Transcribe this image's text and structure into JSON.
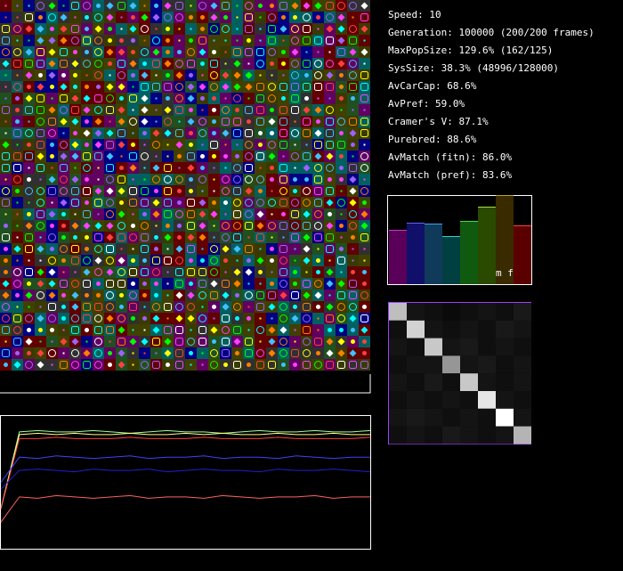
{
  "stats": [
    "Speed: 10",
    "Generation: 100000 (200/200 frames)",
    "MaxPopSize: 129.6% (162/125)",
    "SysSize: 38.3% (48996/128000)",
    "AvCarCap: 68.6%",
    "AvPref: 59.0%",
    "Cramer's V: 87.1%",
    "Purebred: 88.6%",
    "AvMatch (fitn): 86.0%",
    "AvMatch (pref): 83.6%"
  ],
  "histogram": {
    "label": "m f",
    "colors": [
      "#5a005a",
      "#10106a",
      "#103a5a",
      "#004040",
      "#105a10",
      "#2a4a00",
      "#3a2a00",
      "#5a0000"
    ],
    "tops": [
      "#c040c0",
      "#6060ff",
      "#40a0ff",
      "#30d0d0",
      "#40e040",
      "#a0e040",
      "#c0a040",
      "#ff4040"
    ],
    "values": [
      61,
      69,
      68,
      54,
      71,
      87,
      100,
      66
    ],
    "ylim": [
      0,
      100
    ]
  },
  "matrix": {
    "values": [
      [
        190,
        20,
        15,
        10,
        15,
        20,
        15,
        25
      ],
      [
        15,
        210,
        20,
        15,
        20,
        15,
        25,
        20
      ],
      [
        20,
        15,
        200,
        20,
        25,
        15,
        20,
        15
      ],
      [
        15,
        20,
        20,
        150,
        20,
        25,
        15,
        20
      ],
      [
        20,
        15,
        25,
        15,
        200,
        20,
        15,
        20
      ],
      [
        15,
        20,
        15,
        20,
        15,
        230,
        20,
        15
      ],
      [
        20,
        25,
        20,
        15,
        20,
        15,
        255,
        20
      ],
      [
        15,
        20,
        15,
        25,
        20,
        15,
        20,
        180
      ]
    ]
  },
  "graph": {
    "ylim": [
      0,
      100
    ],
    "x": [
      0,
      1,
      2,
      3,
      4,
      5,
      6,
      7,
      8,
      9,
      10,
      11,
      12,
      13,
      14,
      15,
      16,
      17,
      18,
      19,
      20
    ],
    "series": [
      {
        "color": "#a0ffa0",
        "values": [
          30,
          88,
          89,
          88,
          88,
          89,
          88,
          87,
          88,
          89,
          88,
          88,
          87,
          88,
          89,
          88,
          88,
          89,
          88,
          88,
          89
        ]
      },
      {
        "color": "#ffff80",
        "values": [
          30,
          86,
          87,
          86,
          87,
          86,
          86,
          87,
          86,
          86,
          87,
          86,
          87,
          86,
          86,
          87,
          86,
          86,
          87,
          86,
          86
        ]
      },
      {
        "color": "#ff4040",
        "values": [
          30,
          83,
          83,
          84,
          83,
          83,
          83,
          84,
          83,
          83,
          83,
          84,
          83,
          83,
          83,
          84,
          83,
          83,
          83,
          83,
          84
        ]
      },
      {
        "color": "#4040ff",
        "values": [
          50,
          69,
          68,
          70,
          69,
          68,
          69,
          70,
          68,
          69,
          69,
          70,
          68,
          69,
          69,
          68,
          70,
          69,
          68,
          69,
          69
        ]
      },
      {
        "color": "#2020d0",
        "values": [
          45,
          59,
          60,
          59,
          58,
          60,
          59,
          59,
          60,
          58,
          59,
          60,
          59,
          59,
          58,
          60,
          59,
          59,
          60,
          59,
          58
        ]
      },
      {
        "color": "#ff6060",
        "values": [
          20,
          39,
          38,
          40,
          39,
          38,
          39,
          40,
          38,
          39,
          39,
          38,
          40,
          39,
          38,
          39,
          39,
          40,
          38,
          39,
          39
        ]
      }
    ]
  }
}
